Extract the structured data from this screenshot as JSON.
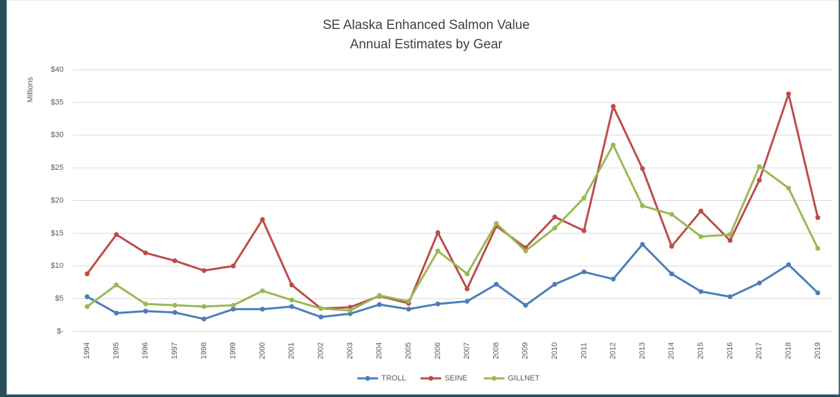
{
  "chart_data": {
    "type": "line",
    "title": "SE Alaska Enhanced Salmon Value",
    "subtitle": "Annual Estimates by Gear",
    "y_label": "Millions",
    "categories": [
      "1994",
      "1995",
      "1996",
      "1997",
      "1998",
      "1999",
      "2000",
      "2001",
      "2002",
      "2003",
      "2004",
      "2005",
      "2006",
      "2007",
      "2008",
      "2009",
      "2010",
      "2011",
      "2012",
      "2013",
      "2014",
      "2015",
      "2016",
      "2017",
      "2018",
      "2019"
    ],
    "series": [
      {
        "name": "TROLL",
        "color": "#4a7ebb",
        "values": [
          5.3,
          2.8,
          3.1,
          2.9,
          1.9,
          3.4,
          3.4,
          3.8,
          2.2,
          2.7,
          4.1,
          3.4,
          4.2,
          4.6,
          7.2,
          4.0,
          7.2,
          9.1,
          8.0,
          13.3,
          8.8,
          6.1,
          5.3,
          7.4,
          10.2,
          5.9
        ]
      },
      {
        "name": "SEINE",
        "color": "#be4b48",
        "values": [
          8.8,
          14.8,
          12.0,
          10.8,
          9.3,
          10.0,
          17.1,
          7.1,
          3.5,
          3.7,
          5.4,
          4.3,
          15.1,
          6.5,
          16.1,
          12.8,
          17.5,
          15.4,
          34.4,
          24.9,
          13.0,
          18.4,
          13.9,
          23.1,
          36.3,
          17.4
        ]
      },
      {
        "name": "GILLNET",
        "color": "#98b954",
        "values": [
          3.8,
          7.1,
          4.2,
          4.0,
          3.8,
          4.0,
          6.2,
          4.8,
          3.5,
          3.2,
          5.5,
          4.6,
          12.3,
          8.8,
          16.5,
          12.3,
          15.8,
          20.4,
          28.5,
          19.2,
          17.9,
          14.5,
          14.8,
          25.2,
          21.9,
          12.7
        ]
      }
    ],
    "ylim": [
      0,
      40
    ],
    "yticks": [
      {
        "value": 0,
        "label": "$-"
      },
      {
        "value": 5,
        "label": "$5"
      },
      {
        "value": 10,
        "label": "$10"
      },
      {
        "value": 15,
        "label": "$15"
      },
      {
        "value": 20,
        "label": "$20"
      },
      {
        "value": 25,
        "label": "$25"
      },
      {
        "value": 30,
        "label": "$30"
      },
      {
        "value": 35,
        "label": "$35"
      },
      {
        "value": 40,
        "label": "$40"
      }
    ],
    "grid": true,
    "legend": "bottom"
  }
}
